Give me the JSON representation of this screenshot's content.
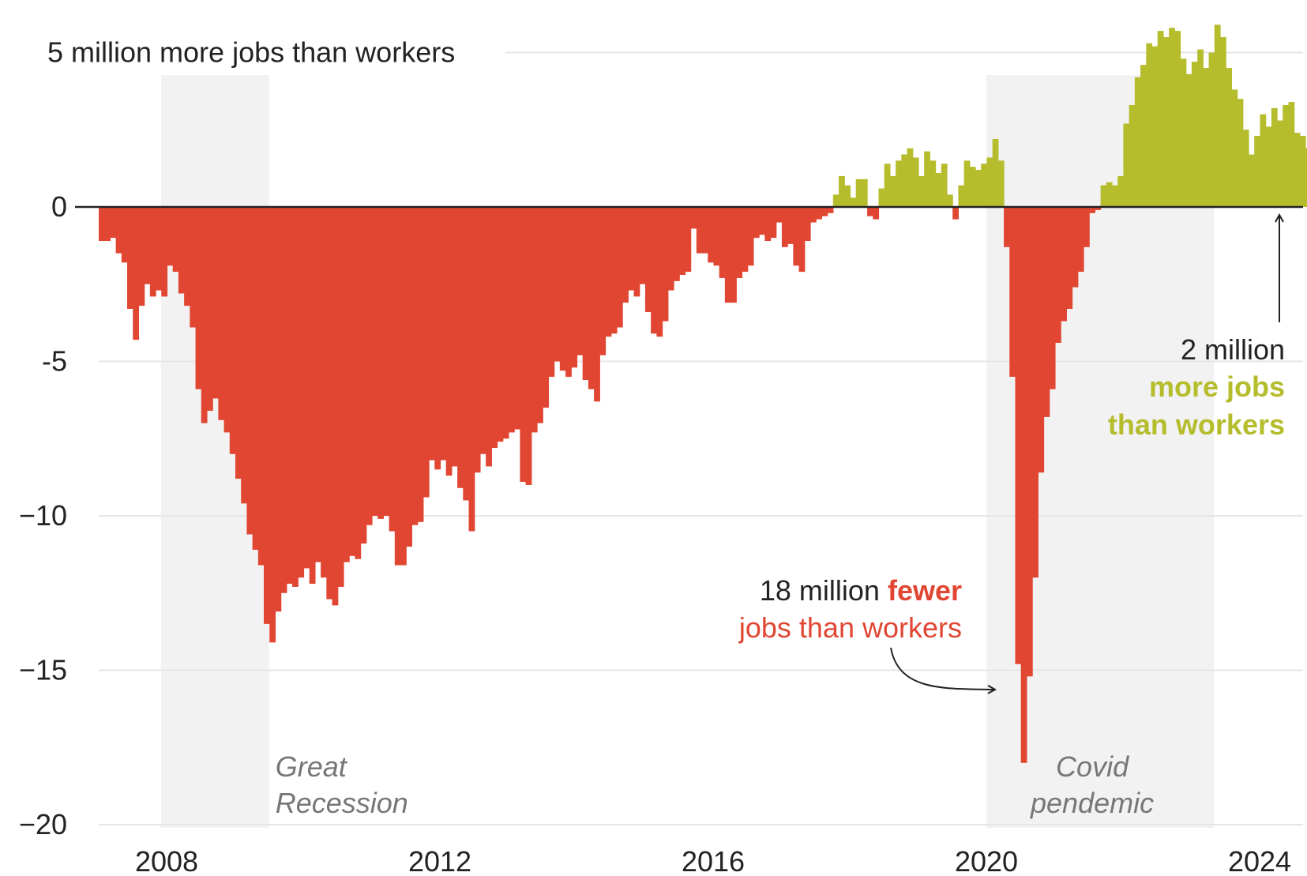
{
  "colors": {
    "negative": "#e04632",
    "positive": "#b5bd2d",
    "shade": "#f2f2f2",
    "grid": "#e6e6e6",
    "axis": "#222222"
  },
  "chart_data": {
    "type": "bar",
    "ylim": [
      -20,
      5.8
    ],
    "y_ticks": [
      {
        "value": 5,
        "label": "5 million more jobs than workers"
      },
      {
        "value": 0,
        "label": "0"
      },
      {
        "value": -5,
        "label": "-5"
      },
      {
        "value": -10,
        "label": "−10"
      },
      {
        "value": -15,
        "label": "−15"
      },
      {
        "value": -20,
        "label": "−20"
      }
    ],
    "x_ticks": [
      {
        "value": 2008,
        "label": "2008"
      },
      {
        "value": 2012,
        "label": "2012"
      },
      {
        "value": 2016,
        "label": "2016"
      },
      {
        "value": 2020,
        "label": "2020"
      },
      {
        "value": 2024,
        "label": "2024"
      }
    ],
    "xlim": [
      2006.8,
      2024.45
    ],
    "shaded_periods": [
      {
        "start": 2007.917,
        "end": 2009.5,
        "label_lines": [
          "Great",
          "Recession"
        ]
      },
      {
        "start": 2020.0,
        "end": 2023.33,
        "label_lines": [
          "Covid",
          "pendemic"
        ]
      }
    ],
    "annotations": {
      "min": {
        "value_text": "18 million",
        "colored_text": "fewer",
        "line2": "jobs than workers"
      },
      "latest": {
        "line1": "2 million",
        "line2": "more jobs",
        "line3": "than workers"
      }
    },
    "series": {
      "start_year": 2007.0,
      "step": 0.08333,
      "values": [
        -1.1,
        -1.1,
        -1.0,
        -1.5,
        -1.8,
        -3.3,
        -4.3,
        -3.2,
        -2.5,
        -2.9,
        -2.7,
        -2.9,
        -1.9,
        -2.1,
        -2.8,
        -3.2,
        -3.9,
        -5.9,
        -7.0,
        -6.6,
        -6.2,
        -6.9,
        -7.3,
        -8.0,
        -8.8,
        -9.6,
        -10.6,
        -11.1,
        -11.6,
        -13.5,
        -14.1,
        -13.1,
        -12.5,
        -12.2,
        -12.3,
        -12.0,
        -11.7,
        -12.2,
        -11.5,
        -12.0,
        -12.7,
        -12.9,
        -12.3,
        -11.5,
        -11.3,
        -11.4,
        -10.9,
        -10.3,
        -10.0,
        -10.1,
        -10.0,
        -10.5,
        -11.6,
        -11.6,
        -11.0,
        -10.3,
        -10.2,
        -9.4,
        -8.2,
        -8.5,
        -8.2,
        -8.7,
        -8.4,
        -9.1,
        -9.5,
        -10.5,
        -8.6,
        -8.0,
        -8.4,
        -7.8,
        -7.6,
        -7.5,
        -7.3,
        -7.2,
        -8.9,
        -9.0,
        -7.3,
        -7.0,
        -6.5,
        -5.5,
        -5.0,
        -5.3,
        -5.5,
        -5.2,
        -4.8,
        -5.6,
        -5.9,
        -6.3,
        -4.8,
        -4.2,
        -4.1,
        -3.9,
        -3.1,
        -2.7,
        -2.9,
        -2.5,
        -3.4,
        -4.1,
        -4.2,
        -3.7,
        -2.7,
        -2.4,
        -2.2,
        -2.1,
        -0.7,
        -1.5,
        -1.5,
        -1.8,
        -1.9,
        -2.3,
        -3.1,
        -3.1,
        -2.3,
        -2.1,
        -1.9,
        -1.0,
        -0.9,
        -1.1,
        -1.0,
        -0.5,
        -1.3,
        -1.2,
        -1.9,
        -2.1,
        -1.1,
        -0.5,
        -0.4,
        -0.3,
        -0.2,
        0.4,
        1.0,
        0.7,
        0.3,
        0.9,
        0.9,
        -0.3,
        -0.4,
        0.6,
        1.4,
        1.0,
        1.5,
        1.7,
        1.9,
        1.6,
        1.0,
        1.8,
        1.5,
        1.1,
        1.4,
        0.4,
        -0.4,
        0.7,
        1.5,
        1.3,
        1.2,
        1.4,
        1.6,
        2.2,
        1.5,
        -1.3,
        -5.5,
        -14.8,
        -18.0,
        -15.2,
        -12.0,
        -8.6,
        -6.8,
        -5.9,
        -4.4,
        -3.7,
        -3.3,
        -2.6,
        -2.1,
        -1.3,
        -0.2,
        -0.1,
        0.7,
        0.8,
        0.7,
        1.0,
        2.7,
        3.3,
        4.2,
        4.6,
        5.3,
        5.2,
        5.7,
        5.5,
        5.8,
        5.7,
        4.8,
        4.3,
        4.7,
        5.1,
        4.5,
        5.0,
        5.9,
        5.5,
        4.5,
        3.8,
        3.5,
        2.5,
        1.7,
        2.3,
        3.0,
        2.6,
        3.2,
        2.8,
        3.3,
        3.4,
        2.4,
        2.3,
        1.9
      ]
    }
  }
}
